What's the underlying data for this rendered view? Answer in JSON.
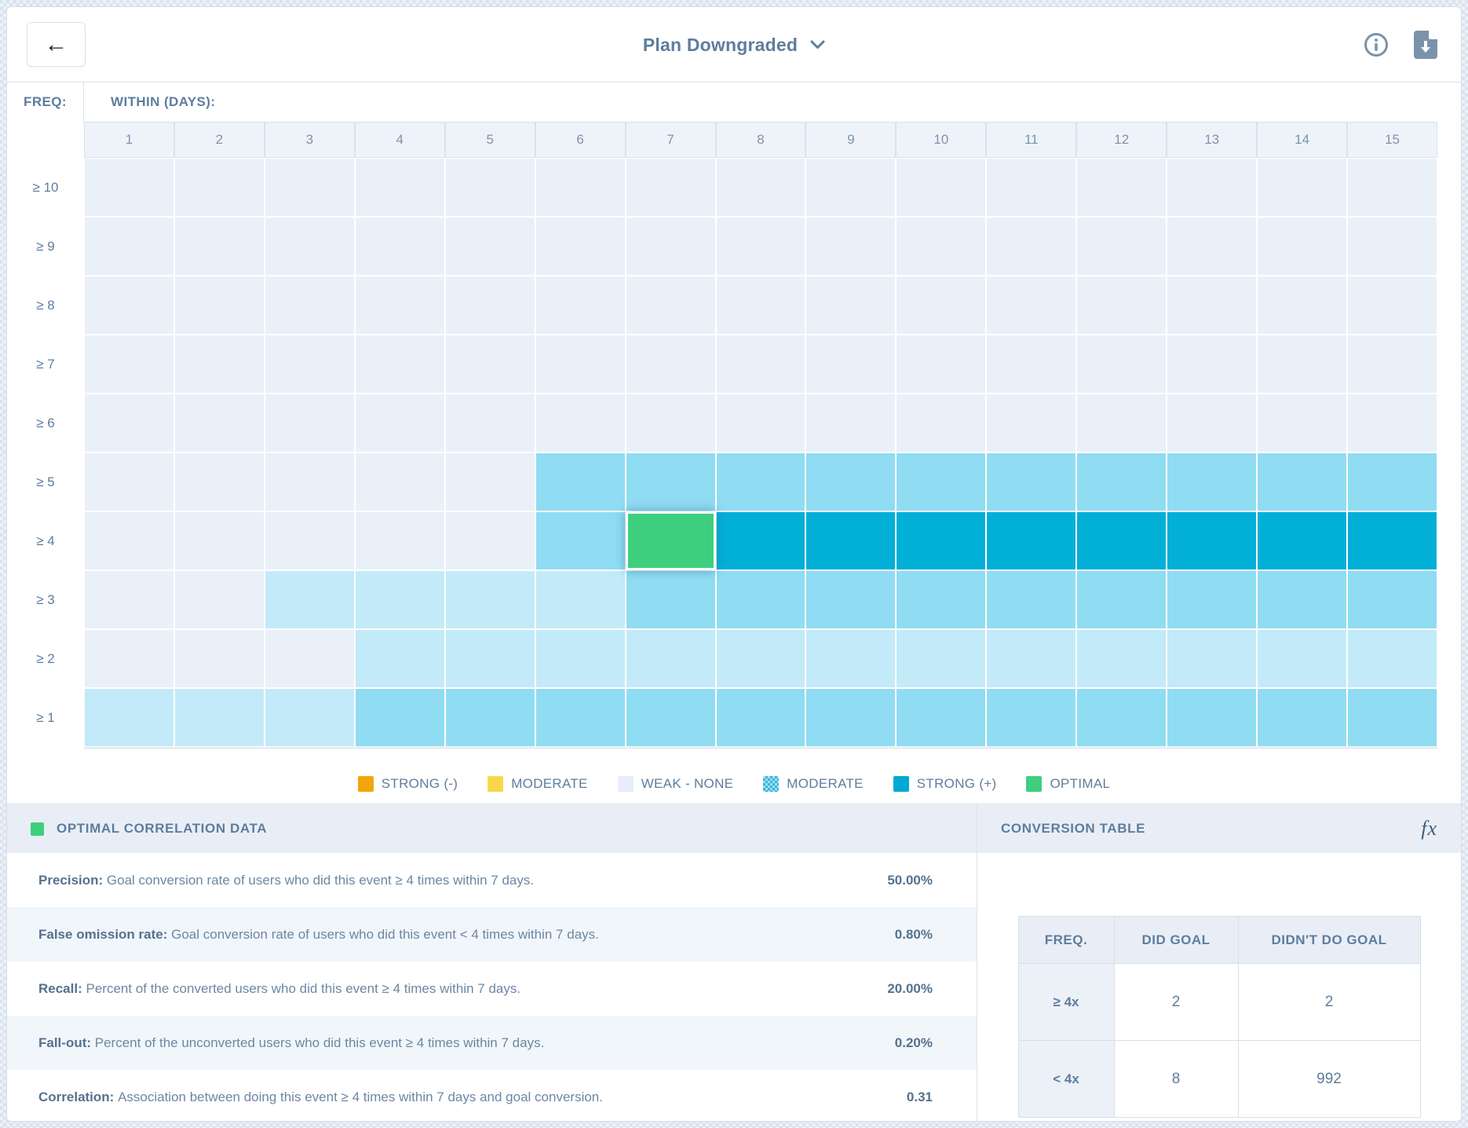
{
  "topbar": {
    "title": "Plan Downgraded",
    "back_label": "←"
  },
  "heatmap": {
    "freq_label": "FREQ:",
    "within_label": "WITHIN (DAYS):",
    "columns": [
      "1",
      "2",
      "3",
      "4",
      "5",
      "6",
      "7",
      "8",
      "9",
      "10",
      "11",
      "12",
      "13",
      "14",
      "15"
    ],
    "rows": [
      {
        "label": "≥ 10",
        "cells": "wwwwwwwwwwwwwww"
      },
      {
        "label": "≥ 9",
        "cells": "wwwwwwwwwwwwwww"
      },
      {
        "label": "≥ 8",
        "cells": "wwwwwwwwwwwwwww"
      },
      {
        "label": "≥ 7",
        "cells": "wwwwwwwwwwwwwww"
      },
      {
        "label": "≥ 6",
        "cells": "wwwwwwwwwwwwwww"
      },
      {
        "label": "≥ 5",
        "cells": "wwwwwmmmmmmmmmm"
      },
      {
        "label": "≥ 4",
        "cells": "wwwwwmossssssss"
      },
      {
        "label": "≥ 3",
        "cells": "wwllllmmmmmmmmm"
      },
      {
        "label": "≥ 2",
        "cells": "wwwllllllllllll"
      },
      {
        "label": "≥ 1",
        "cells": "lllmmmmmmmmmmmm"
      }
    ],
    "selected_cell": {
      "freq": "≥ 4",
      "day": "7"
    }
  },
  "legend": [
    {
      "label": "STRONG (-)",
      "color": "#f2a60d",
      "pattern": "solid"
    },
    {
      "label": "MODERATE",
      "color": "#f8d84a",
      "pattern": "solid"
    },
    {
      "label": "WEAK - NONE",
      "color": "#e8eef7",
      "pattern": "solid"
    },
    {
      "label": "MODERATE",
      "color": "#90dcf2",
      "pattern": "dots"
    },
    {
      "label": "STRONG (+)",
      "color": "#02a9d4",
      "pattern": "solid"
    },
    {
      "label": "OPTIMAL",
      "color": "#3ecf7e",
      "pattern": "solid"
    }
  ],
  "palette": {
    "weak_none": "#eaf0f8",
    "weak_moderate": "#c3eaf8",
    "moderate": "#90dcf2",
    "strong_positive": "#02afd6",
    "optimal": "#3ecf7e",
    "strong_negative": "#f2a60d",
    "moderate_negative": "#f8d84a"
  },
  "correlation_panel": {
    "title": "OPTIMAL CORRELATION DATA",
    "stats": [
      {
        "name": "Precision: ",
        "description": "Goal conversion rate of users who did this event ≥ 4 times within 7 days.",
        "value": "50.00%"
      },
      {
        "name": "False omission rate: ",
        "description": "Goal conversion rate of users who did this event < 4 times within 7 days.",
        "value": "0.80%"
      },
      {
        "name": "Recall: ",
        "description": "Percent of the converted users who did this event ≥ 4 times within 7 days.",
        "value": "20.00%"
      },
      {
        "name": "Fall-out: ",
        "description": "Percent of the unconverted users who did this event ≥ 4 times within 7 days.",
        "value": "0.20%"
      },
      {
        "name": "Correlation: ",
        "description": "Association between doing this event ≥ 4 times within 7 days and goal conversion.",
        "value": "0.31"
      }
    ]
  },
  "conversion_panel": {
    "title": "CONVERSION TABLE",
    "fx_label": "fx",
    "table": {
      "headers": [
        "FREQ.",
        "DID GOAL",
        "DIDN'T DO GOAL"
      ],
      "rows": [
        {
          "freq": "≥ 4x",
          "did": "2",
          "didnt": "2"
        },
        {
          "freq": "< 4x",
          "did": "8",
          "didnt": "992"
        }
      ]
    }
  },
  "chart_data": {
    "type": "heatmap",
    "title": "Plan Downgraded correlation heatmap",
    "xlabel": "WITHIN (DAYS):",
    "ylabel": "FREQ:",
    "x": [
      "1",
      "2",
      "3",
      "4",
      "5",
      "6",
      "7",
      "8",
      "9",
      "10",
      "11",
      "12",
      "13",
      "14",
      "15"
    ],
    "y": [
      "≥ 10",
      "≥ 9",
      "≥ 8",
      "≥ 7",
      "≥ 6",
      "≥ 5",
      "≥ 4",
      "≥ 3",
      "≥ 2",
      "≥ 1"
    ],
    "value_scale": {
      "w": "weak-none",
      "l": "weak-moderate",
      "m": "moderate",
      "s": "strong-positive",
      "o": "optimal"
    },
    "values": [
      "wwwwwwwwwwwwwww",
      "wwwwwwwwwwwwwww",
      "wwwwwwwwwwwwwww",
      "wwwwwwwwwwwwwww",
      "wwwwwwwwwwwwwww",
      "wwwwwmmmmmmmmmm",
      "wwwwwmossssssss",
      "wwllllmmmmmmmmm",
      "wwwllllllllllll",
      "lllmmmmmmmmmmmm"
    ],
    "optimal_point": {
      "x": "7",
      "y": "≥ 4"
    },
    "legend_position": "bottom"
  }
}
